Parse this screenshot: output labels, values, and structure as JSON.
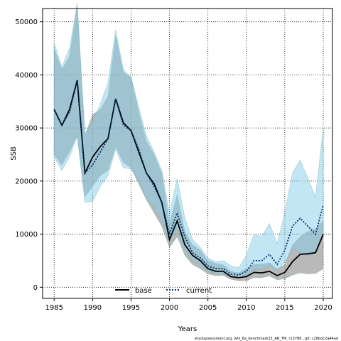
{
  "chart_data": {
    "type": "area",
    "xlabel": "Years",
    "ylabel": "SSB",
    "xlim": [
      1983.5,
      2021.2
    ],
    "ylim": [
      -2100,
      52500
    ],
    "xticks": [
      1985,
      1990,
      1995,
      2000,
      2005,
      2010,
      2015,
      2020
    ],
    "yticks": [
      0,
      10000,
      20000,
      30000,
      40000,
      50000
    ],
    "grid": true,
    "legend_position": "bottom-center",
    "footer": "stockassessment.org, whi_6a_benchmark21_AR_TM, r13786 , git: c28bdc2a44ad",
    "colors": {
      "base_line": "#000000",
      "base_band": "#808080",
      "current_line": "#003366",
      "current_band": "#87ceeb"
    },
    "x": [
      1985,
      1986,
      1987,
      1988,
      1989,
      1990,
      1991,
      1992,
      1993,
      1994,
      1995,
      1996,
      1997,
      1998,
      1999,
      2000,
      2001,
      2002,
      2003,
      2004,
      2005,
      2006,
      2007,
      2008,
      2009,
      2010,
      2011,
      2012,
      2013,
      2014,
      2015,
      2016,
      2017,
      2018,
      2019,
      2020
    ],
    "series": [
      {
        "name": "base",
        "values": [
          33500,
          30500,
          33500,
          39000,
          21500,
          24500,
          26500,
          28000,
          35500,
          31000,
          29500,
          25500,
          21500,
          19500,
          16000,
          9000,
          12500,
          8000,
          6000,
          5000,
          3500,
          3000,
          3000,
          2000,
          1800,
          2000,
          2800,
          2700,
          3000,
          2200,
          2800,
          4800,
          6200,
          6300,
          6500,
          10000
        ],
        "lower": [
          25000,
          23000,
          25500,
          28500,
          17000,
          19000,
          21000,
          22000,
          26500,
          23500,
          22500,
          19500,
          16500,
          14000,
          11500,
          7500,
          9500,
          6000,
          4300,
          3500,
          2500,
          2200,
          2200,
          1500,
          1200,
          1200,
          1800,
          1800,
          2100,
          1400,
          1600,
          2300,
          2700,
          2500,
          2600,
          3500
        ],
        "upper": [
          45000,
          41000,
          43500,
          53000,
          28500,
          32500,
          33500,
          36000,
          47500,
          40500,
          39500,
          33000,
          27500,
          25000,
          21500,
          12000,
          17500,
          10500,
          8000,
          7000,
          5000,
          4500,
          4200,
          3000,
          2700,
          3500,
          4300,
          4400,
          4600,
          3500,
          4200,
          8000,
          9500,
          10500,
          11000,
          12500
        ]
      },
      {
        "name": "current",
        "values": [
          33500,
          30500,
          33000,
          39000,
          21500,
          23000,
          25500,
          28000,
          35500,
          30500,
          29500,
          26000,
          21500,
          19000,
          16000,
          10000,
          14000,
          9500,
          6500,
          5500,
          4000,
          3500,
          3500,
          2500,
          2300,
          3000,
          5000,
          5000,
          6200,
          4300,
          7000,
          11500,
          13000,
          11500,
          10000,
          15500
        ],
        "lower": [
          24500,
          22000,
          24500,
          28500,
          16000,
          16200,
          19000,
          21000,
          26000,
          22500,
          22300,
          20000,
          16500,
          15000,
          12500,
          8500,
          11000,
          7000,
          5000,
          4200,
          3000,
          2600,
          2600,
          1900,
          1700,
          2100,
          3400,
          3300,
          4200,
          3000,
          4700,
          7200,
          6500,
          6000,
          6400,
          10000
        ],
        "upper": [
          46000,
          41500,
          45000,
          53500,
          29000,
          31000,
          34500,
          38500,
          48500,
          41000,
          39500,
          34000,
          28500,
          25500,
          22000,
          14000,
          20500,
          13000,
          9000,
          7500,
          5500,
          4800,
          5000,
          4000,
          3700,
          6000,
          10000,
          9500,
          12000,
          8200,
          14000,
          21500,
          24000,
          20500,
          17000,
          30000
        ]
      }
    ]
  }
}
